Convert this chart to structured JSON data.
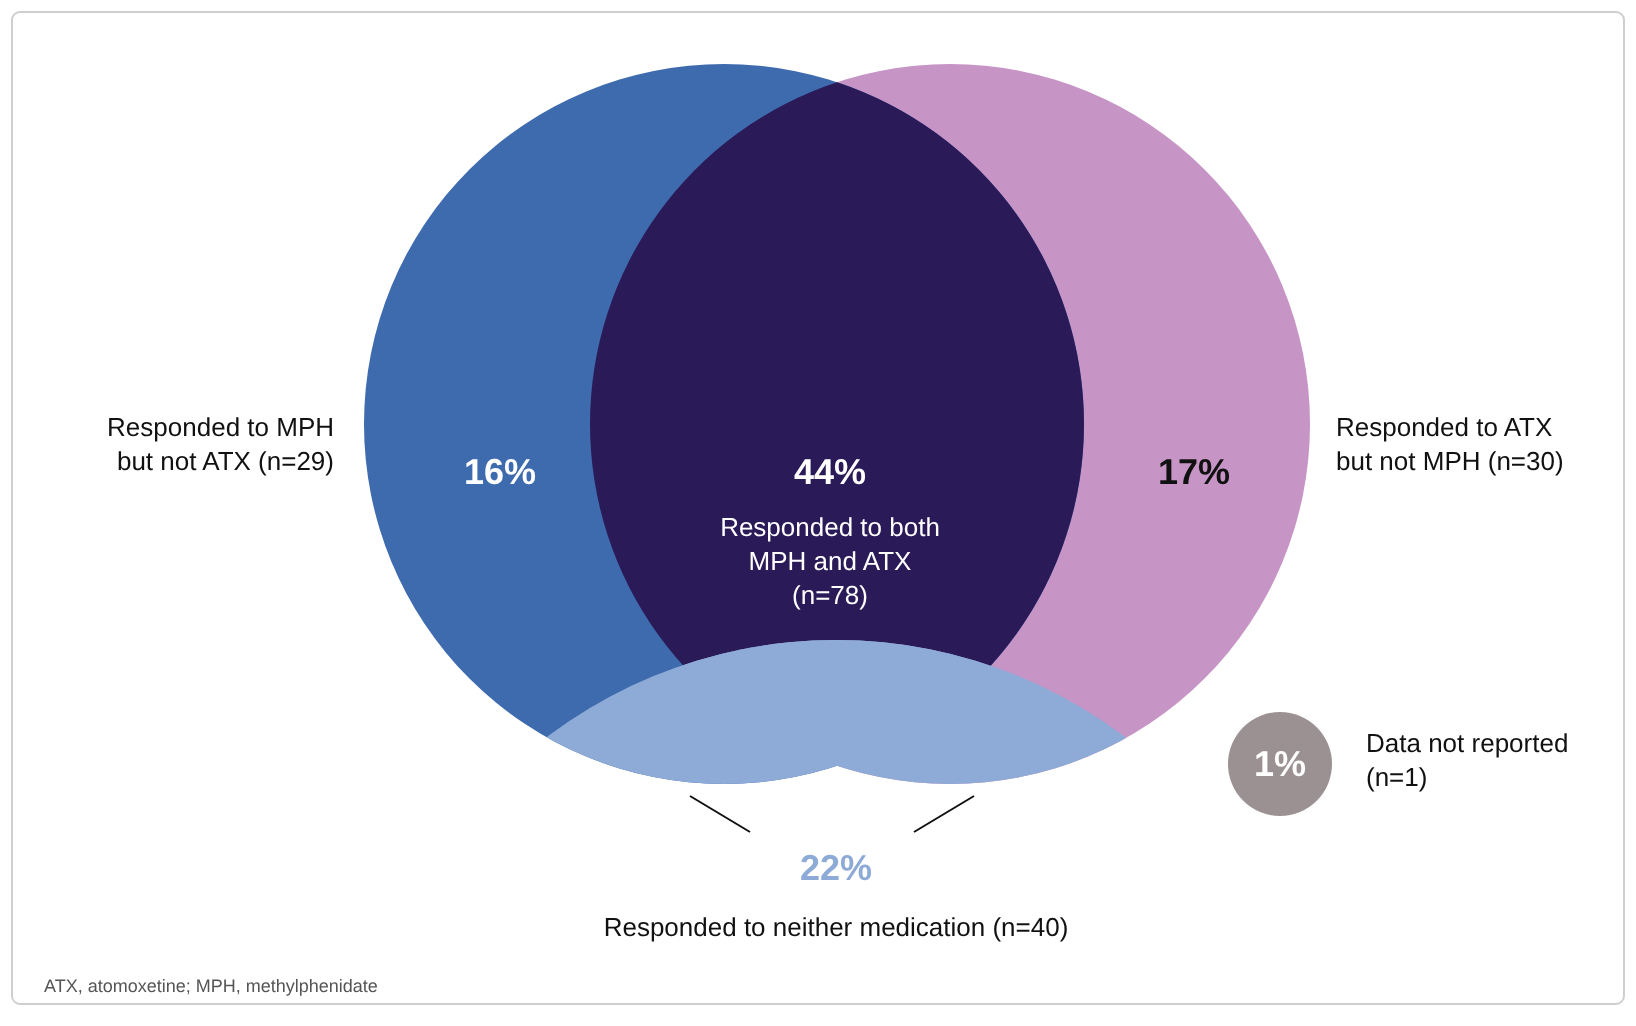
{
  "chart_data": {
    "type": "other",
    "categories": [
      "Responded to MPH but not ATX (n=29)",
      "Responded to both MPH and ATX (n=78)",
      "Responded to ATX but not MPH (n=30)",
      "Responded to neither medication (n=40)",
      "Data not reported (n=1)"
    ],
    "values": [
      16,
      44,
      17,
      22,
      1
    ],
    "value_labels": [
      "16%",
      "44%",
      "17%",
      "22%",
      "1%"
    ],
    "colors": [
      "#3e6aae",
      "#2b1a58",
      "#c794c6",
      "#8eaad6",
      "#9b9192"
    ],
    "annotations": [
      "ATX, atomoxetine; MPH, methylphenidate"
    ]
  }
}
